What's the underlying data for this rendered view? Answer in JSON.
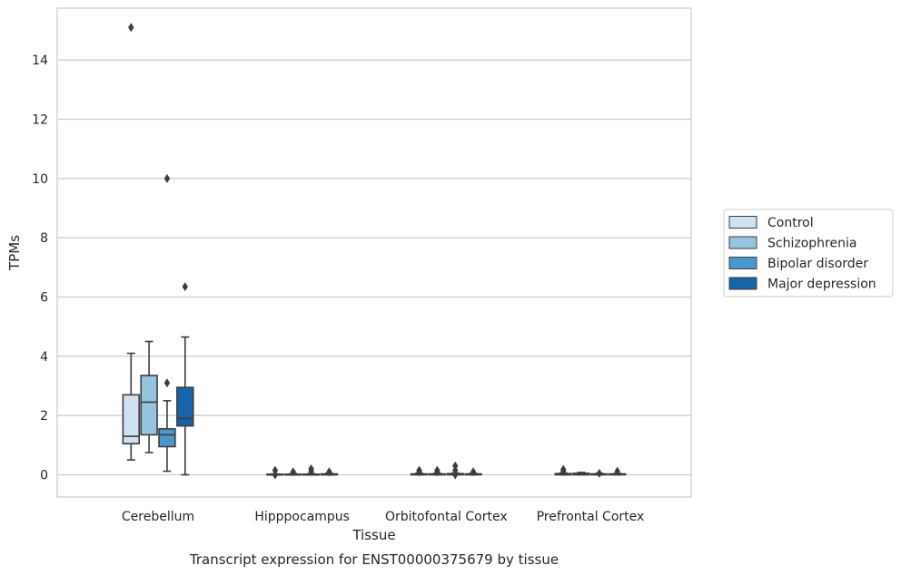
{
  "chart_data": {
    "type": "box",
    "title": "Transcript expression for ENST00000375679 by tissue",
    "xlabel": "Tissue",
    "ylabel": "TPMs",
    "ylim": [
      -0.75,
      15.75
    ],
    "yticks": [
      0,
      2,
      4,
      6,
      8,
      10,
      12,
      14
    ],
    "grid": "horizontal",
    "legend_position": "right",
    "categories": [
      "Cerebellum",
      "Hipppocampus",
      "Orbitofontal Cortex",
      "Prefrontal Cortex"
    ],
    "series": [
      {
        "name": "Control",
        "color": "#d0e1f2",
        "boxes": [
          {
            "min": 0.5,
            "q1": 1.05,
            "median": 1.3,
            "q3": 2.7,
            "max": 4.1,
            "outliers": [
              15.1
            ]
          },
          {
            "min": 0.0,
            "q1": 0.0,
            "median": 0.0,
            "q3": 0.02,
            "max": 0.03,
            "outliers": [
              0.15,
              0.0
            ]
          },
          {
            "min": 0.0,
            "q1": 0.0,
            "median": 0.01,
            "q3": 0.03,
            "max": 0.05,
            "outliers": [
              0.1,
              0.15
            ]
          },
          {
            "min": 0.0,
            "q1": 0.0,
            "median": 0.01,
            "q3": 0.04,
            "max": 0.06,
            "outliers": [
              0.12,
              0.18
            ]
          }
        ]
      },
      {
        "name": "Schizophrenia",
        "color": "#94c4df",
        "boxes": [
          {
            "min": 0.75,
            "q1": 1.35,
            "median": 2.45,
            "q3": 3.35,
            "max": 4.5,
            "outliers": []
          },
          {
            "min": 0.0,
            "q1": 0.0,
            "median": 0.0,
            "q3": 0.02,
            "max": 0.04,
            "outliers": [
              0.1
            ]
          },
          {
            "min": 0.0,
            "q1": 0.0,
            "median": 0.01,
            "q3": 0.03,
            "max": 0.05,
            "outliers": [
              0.1,
              0.15
            ]
          },
          {
            "min": 0.0,
            "q1": 0.0,
            "median": 0.02,
            "q3": 0.05,
            "max": 0.08,
            "outliers": []
          }
        ]
      },
      {
        "name": "Bipolar disorder",
        "color": "#4a98c9",
        "boxes": [
          {
            "min": 0.12,
            "q1": 0.95,
            "median": 1.35,
            "q3": 1.55,
            "max": 2.5,
            "outliers": [
              3.1,
              10.0
            ]
          },
          {
            "min": 0.0,
            "q1": 0.0,
            "median": 0.0,
            "q3": 0.02,
            "max": 0.04,
            "outliers": [
              0.12,
              0.2
            ]
          },
          {
            "min": 0.0,
            "q1": 0.0,
            "median": 0.01,
            "q3": 0.04,
            "max": 0.06,
            "outliers": [
              0.3,
              0.0,
              0.15
            ]
          },
          {
            "min": 0.0,
            "q1": 0.0,
            "median": 0.01,
            "q3": 0.03,
            "max": 0.05,
            "outliers": [
              0.05
            ]
          }
        ]
      },
      {
        "name": "Major depression",
        "color": "#1764ab",
        "boxes": [
          {
            "min": 0.0,
            "q1": 1.65,
            "median": 1.9,
            "q3": 2.95,
            "max": 4.65,
            "outliers": [
              6.35
            ]
          },
          {
            "min": 0.0,
            "q1": 0.0,
            "median": 0.0,
            "q3": 0.03,
            "max": 0.05,
            "outliers": [
              0.1
            ]
          },
          {
            "min": 0.0,
            "q1": 0.0,
            "median": 0.01,
            "q3": 0.03,
            "max": 0.05,
            "outliers": [
              0.1
            ]
          },
          {
            "min": 0.0,
            "q1": 0.0,
            "median": 0.01,
            "q3": 0.03,
            "max": 0.05,
            "outliers": [
              0.12
            ]
          }
        ]
      }
    ]
  }
}
